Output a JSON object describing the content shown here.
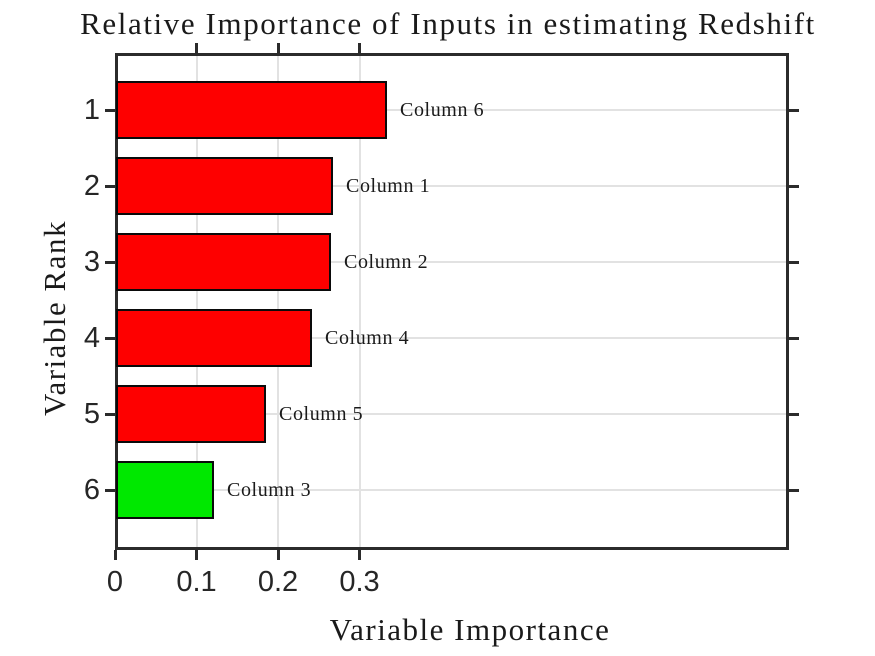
{
  "chart_data": {
    "type": "bar",
    "orientation": "horizontal",
    "title": "Relative Importance of Inputs in estimating Redshift",
    "xlabel": "Variable Importance",
    "ylabel": "Variable Rank",
    "grid": true,
    "xlim": [
      0,
      0.827
    ],
    "x_ticks": [
      {
        "value": 0,
        "label": "0"
      },
      {
        "value": 0.1,
        "label": "0.1"
      },
      {
        "value": 0.2,
        "label": "0.2"
      },
      {
        "value": 0.3,
        "label": "0.3"
      }
    ],
    "y_tick_labels": [
      "1",
      "2",
      "3",
      "4",
      "5",
      "6"
    ],
    "bars": [
      {
        "rank": "1",
        "label": "Column 6",
        "value": 0.333,
        "color": "#fe0000"
      },
      {
        "rank": "2",
        "label": "Column 1",
        "value": 0.266,
        "color": "#fe0000"
      },
      {
        "rank": "3",
        "label": "Column 2",
        "value": 0.264,
        "color": "#fe0000"
      },
      {
        "rank": "4",
        "label": "Column 4",
        "value": 0.241,
        "color": "#fe0000"
      },
      {
        "rank": "5",
        "label": "Column 5",
        "value": 0.184,
        "color": "#fe0000"
      },
      {
        "rank": "6",
        "label": "Column 3",
        "value": 0.12,
        "color": "#00e800"
      }
    ],
    "colors": {
      "bar_default": "#fe0000",
      "bar_highlight": "#00e800",
      "bar_edge": "#0a0a0a",
      "axis": "#2b2b2b",
      "grid": "#e2e2e2",
      "text": "#262626"
    }
  }
}
